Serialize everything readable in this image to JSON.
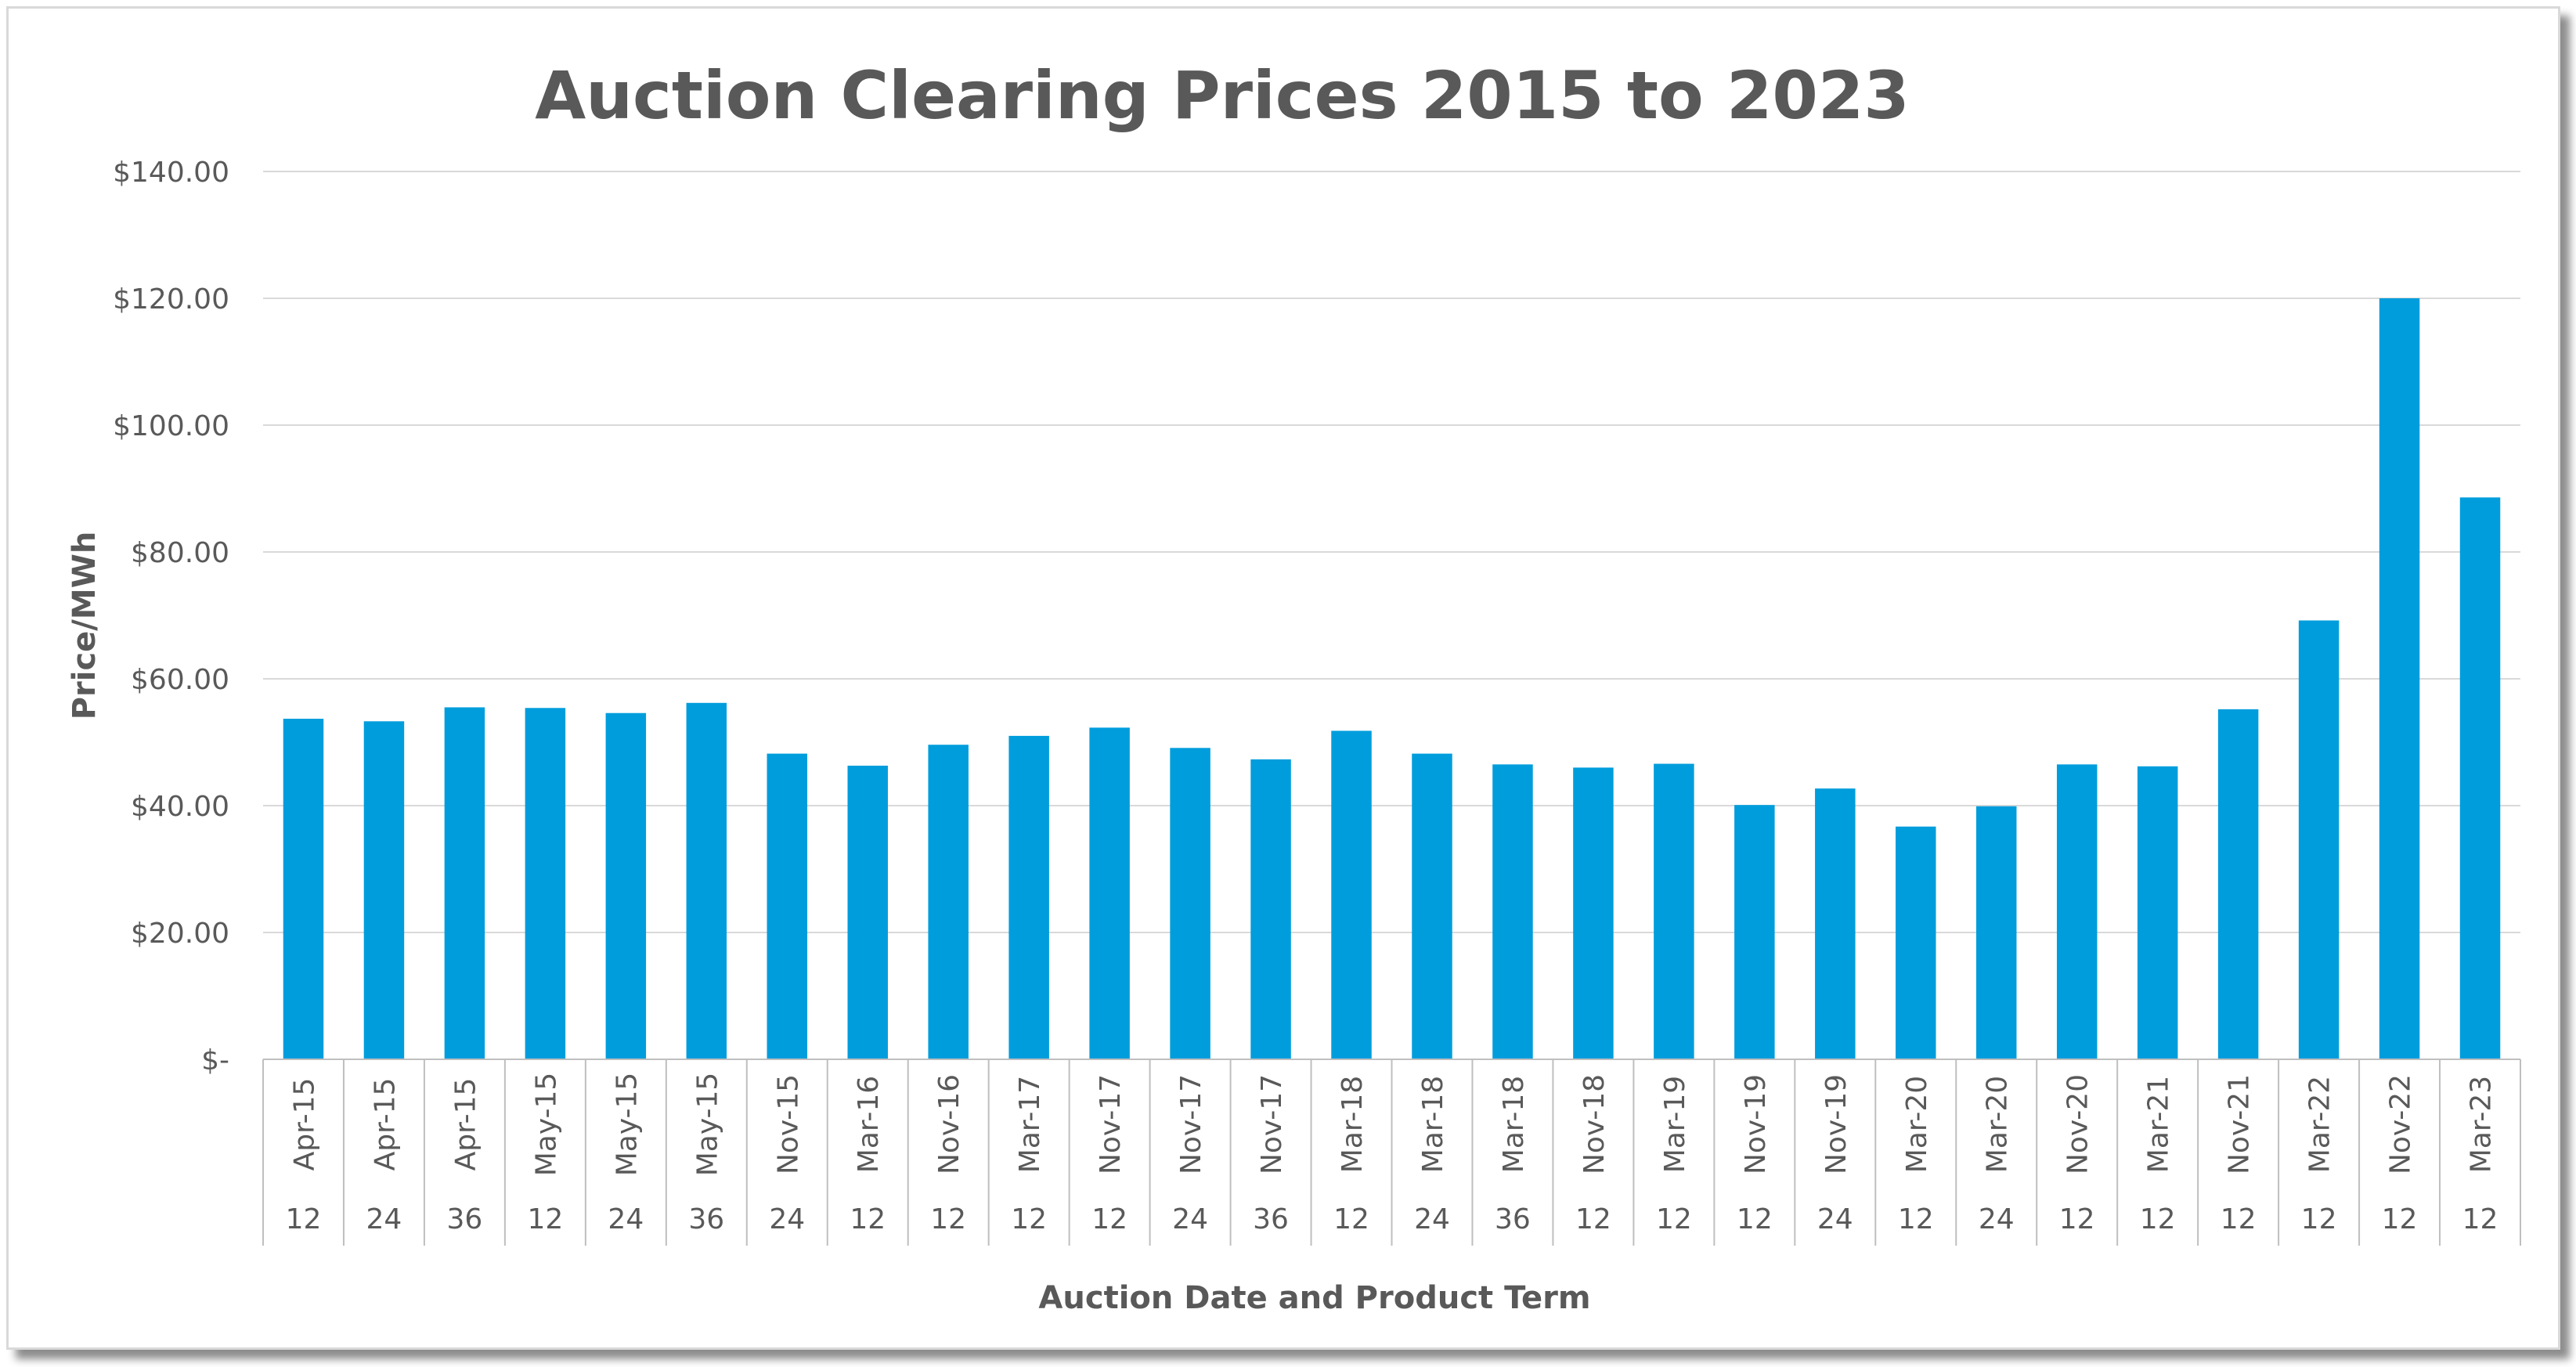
{
  "chart_data": {
    "type": "bar",
    "title": "Auction Clearing Prices 2015 to 2023",
    "xlabel": "Auction Date and Product Term",
    "ylabel": "Price/MWh",
    "ylim": [
      0,
      140
    ],
    "yticks": [
      "$-",
      "$20.00",
      "$40.00",
      "$60.00",
      "$80.00",
      "$100.00",
      "$120.00",
      "$140.00"
    ],
    "grid": true,
    "categories": [
      {
        "date": "Apr-15",
        "term": "12"
      },
      {
        "date": "Apr-15",
        "term": "24"
      },
      {
        "date": "Apr-15",
        "term": "36"
      },
      {
        "date": "May-15",
        "term": "12"
      },
      {
        "date": "May-15",
        "term": "24"
      },
      {
        "date": "May-15",
        "term": "36"
      },
      {
        "date": "Nov-15",
        "term": "24"
      },
      {
        "date": "Mar-16",
        "term": "12"
      },
      {
        "date": "Nov-16",
        "term": "12"
      },
      {
        "date": "Mar-17",
        "term": "12"
      },
      {
        "date": "Nov-17",
        "term": "12"
      },
      {
        "date": "Nov-17",
        "term": "24"
      },
      {
        "date": "Nov-17",
        "term": "36"
      },
      {
        "date": "Mar-18",
        "term": "12"
      },
      {
        "date": "Mar-18",
        "term": "24"
      },
      {
        "date": "Mar-18",
        "term": "36"
      },
      {
        "date": "Nov-18",
        "term": "12"
      },
      {
        "date": "Mar-19",
        "term": "12"
      },
      {
        "date": "Nov-19",
        "term": "12"
      },
      {
        "date": "Nov-19",
        "term": "24"
      },
      {
        "date": "Mar-20",
        "term": "12"
      },
      {
        "date": "Mar-20",
        "term": "24"
      },
      {
        "date": "Nov-20",
        "term": "12"
      },
      {
        "date": "Mar-21",
        "term": "12"
      },
      {
        "date": "Nov-21",
        "term": "12"
      },
      {
        "date": "Mar-22",
        "term": "12"
      },
      {
        "date": "Nov-22",
        "term": "12"
      },
      {
        "date": "Mar-23",
        "term": "12"
      }
    ],
    "values": [
      53.7,
      53.3,
      55.5,
      55.4,
      54.6,
      56.2,
      48.2,
      46.3,
      49.6,
      51.0,
      52.3,
      49.1,
      47.3,
      51.8,
      48.2,
      46.5,
      46.0,
      46.6,
      40.1,
      42.7,
      36.7,
      39.9,
      46.5,
      46.2,
      55.2,
      69.2,
      120.0,
      88.6
    ],
    "colors": {
      "bar": "#009ddc",
      "text": "#595959",
      "grid": "#d9d9d9"
    }
  }
}
